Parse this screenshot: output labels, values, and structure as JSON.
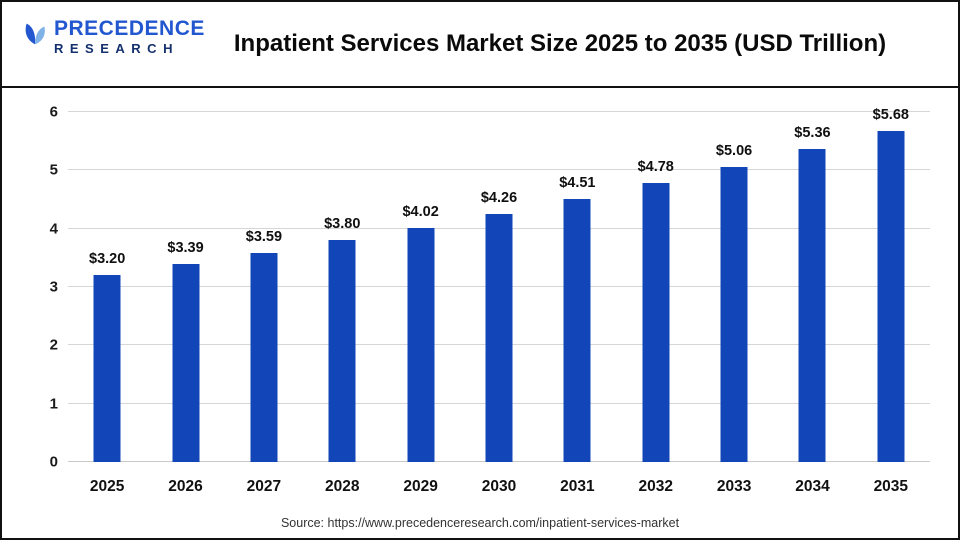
{
  "header": {
    "logo": {
      "line1": "PRECEDENCE",
      "line2": "RESEARCH"
    },
    "title": "Inpatient Services Market Size 2025 to 2035 (USD Trillion)"
  },
  "chart_data": {
    "type": "bar",
    "title": "Inpatient Services Market Size 2025 to 2035 (USD Trillion)",
    "categories": [
      "2025",
      "2026",
      "2027",
      "2028",
      "2029",
      "2030",
      "2031",
      "2032",
      "2033",
      "2034",
      "2035"
    ],
    "values": [
      3.2,
      3.39,
      3.59,
      3.8,
      4.02,
      4.26,
      4.51,
      4.78,
      5.06,
      5.36,
      5.68
    ],
    "value_labels": [
      "$3.20",
      "$3.39",
      "$3.59",
      "$3.80",
      "$4.02",
      "$4.26",
      "$4.51",
      "$4.78",
      "$5.06",
      "$5.36",
      "$5.68"
    ],
    "xlabel": "",
    "ylabel": "",
    "ylim": [
      0,
      6
    ],
    "yticks": [
      0,
      1,
      2,
      3,
      4,
      5,
      6
    ],
    "grid": true,
    "legend_position": "none",
    "bar_color": "#1245b8"
  },
  "footer": {
    "source": "Source: https://www.precedenceresearch.com/inpatient-services-market"
  }
}
